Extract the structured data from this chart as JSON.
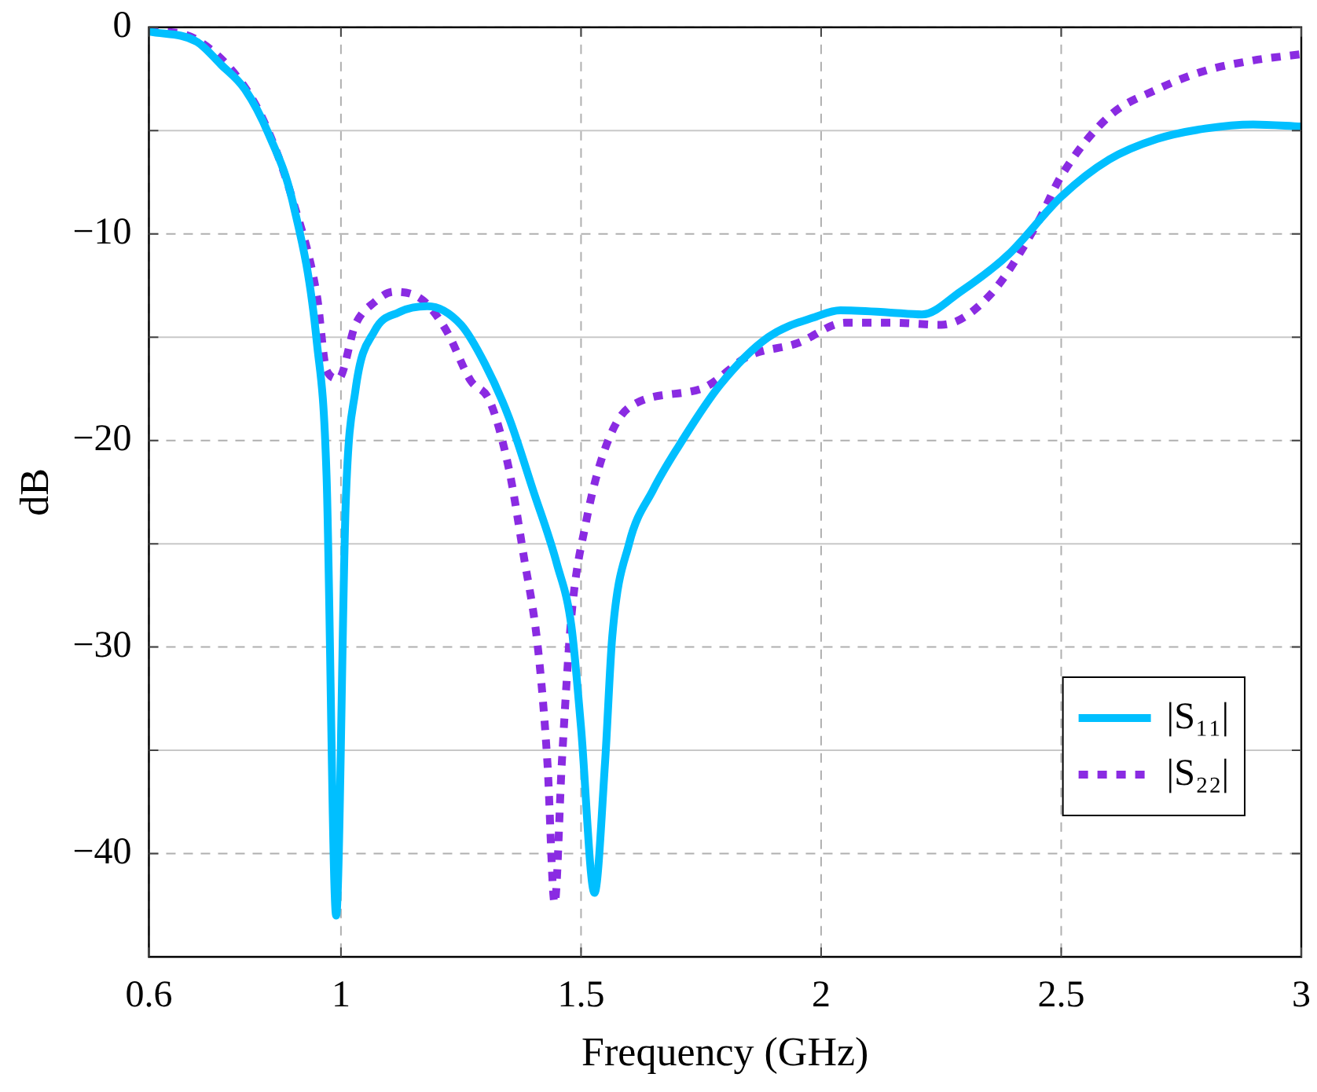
{
  "chart_data": {
    "type": "line",
    "xlabel": "Frequency (GHz)",
    "ylabel": "dB",
    "xlim": [
      0.6,
      3
    ],
    "xticks": [
      0.6,
      1,
      1.5,
      2,
      2.5,
      3
    ],
    "ylim": [
      -45,
      0
    ],
    "yticks": [
      {
        "value": 0,
        "label": "0"
      },
      {
        "value": -5,
        "label": null
      },
      {
        "value": -10,
        "label": "−10"
      },
      {
        "value": -15,
        "label": null
      },
      {
        "value": -20,
        "label": "−20"
      },
      {
        "value": -25,
        "label": null
      },
      {
        "value": -30,
        "label": "−30"
      },
      {
        "value": -35,
        "label": null
      },
      {
        "value": -40,
        "label": "−40"
      }
    ],
    "grid": true,
    "legend": "bottom right",
    "marker": "none",
    "series": [
      {
        "name": "|S₁₁|",
        "color": "#00bfff",
        "line_style": "solid",
        "x": [
          0.6,
          0.7,
          0.75,
          0.8,
          0.85,
          0.9,
          0.95,
          0.97,
          0.99,
          1.01,
          1.03,
          1.07,
          1.12,
          1.18,
          1.25,
          1.3,
          1.35,
          1.4,
          1.45,
          1.48,
          1.5,
          1.528,
          1.55,
          1.565,
          1.6,
          1.65,
          1.7,
          1.79,
          1.89,
          1.99,
          2.04,
          2.14,
          2.21,
          2.29,
          2.39,
          2.5,
          2.6,
          2.7,
          2.8,
          2.9,
          3.0
        ],
        "values": [
          -0.2,
          -0.7,
          -1.8,
          -3.0,
          -5.2,
          -8.5,
          -15.3,
          -21.7,
          -43.0,
          -23,
          -17.6,
          -14.7,
          -13.8,
          -13.5,
          -14.4,
          -16.3,
          -18.9,
          -22.4,
          -26,
          -29,
          -33.9,
          -41.9,
          -35.6,
          -29.5,
          -25.0,
          -22.4,
          -20.4,
          -17.3,
          -15,
          -14,
          -13.7,
          -13.8,
          -13.9,
          -12.8,
          -11,
          -8.2,
          -6.4,
          -5.4,
          -4.9,
          -4.7,
          -4.8
        ]
      },
      {
        "name": "|S₂₂|",
        "color": "#8a2be2",
        "line_style": "dotted",
        "x": [
          0.6,
          0.7,
          0.8,
          0.85,
          0.9,
          0.95,
          0.97,
          0.995,
          1.03,
          1.07,
          1.11,
          1.17,
          1.22,
          1.27,
          1.31,
          1.35,
          1.38,
          1.41,
          1.43,
          1.445,
          1.46,
          1.48,
          1.51,
          1.55,
          1.6,
          1.75,
          1.85,
          1.95,
          2.05,
          2.15,
          2.25,
          2.35,
          2.45,
          2.5,
          2.6,
          2.7,
          2.8,
          2.9,
          3.0
        ],
        "values": [
          -0.1,
          -0.6,
          -2.9,
          -5.1,
          -8.4,
          -13,
          -16.6,
          -17.0,
          -14.4,
          -13.3,
          -12.8,
          -13.2,
          -14.7,
          -17.1,
          -18.1,
          -21.4,
          -25.5,
          -30,
          -35.6,
          -42.4,
          -35.6,
          -28.5,
          -24,
          -20.4,
          -18.4,
          -17.5,
          -15.9,
          -15.3,
          -14.3,
          -14.3,
          -14.4,
          -13,
          -9.5,
          -7.2,
          -4.3,
          -3.0,
          -2.1,
          -1.6,
          -1.3
        ]
      }
    ]
  }
}
